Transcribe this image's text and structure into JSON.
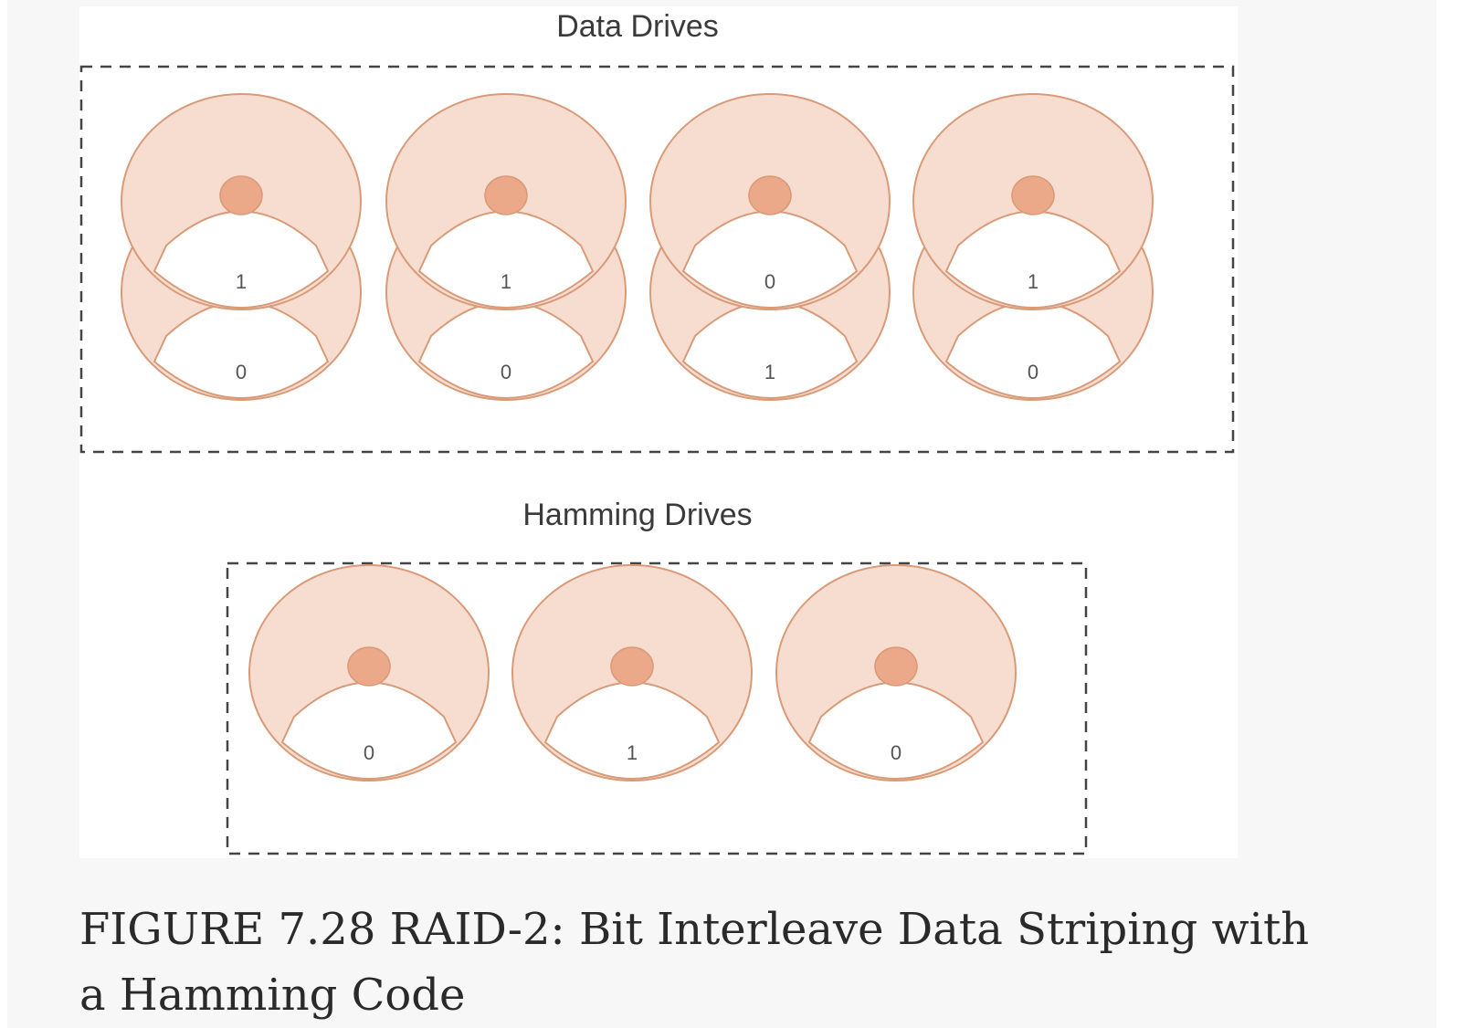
{
  "figure": {
    "caption": "FIGURE 7.28 RAID-2: Bit Interleave Data Striping with\na Hamming Code",
    "colors": {
      "platter_fill": "#f6ddd0",
      "platter_stroke": "#d99a78",
      "spindle_fill": "#eba98a",
      "box_stroke": "#444444"
    }
  },
  "data_drives": {
    "label": "Data Drives",
    "drives": [
      {
        "top_bit": "1",
        "bottom_bit": "0"
      },
      {
        "top_bit": "1",
        "bottom_bit": "0"
      },
      {
        "top_bit": "0",
        "bottom_bit": "1"
      },
      {
        "top_bit": "1",
        "bottom_bit": "0"
      }
    ]
  },
  "hamming_drives": {
    "label": "Hamming Drives",
    "drives": [
      {
        "bit": "0"
      },
      {
        "bit": "1"
      },
      {
        "bit": "0"
      }
    ]
  }
}
